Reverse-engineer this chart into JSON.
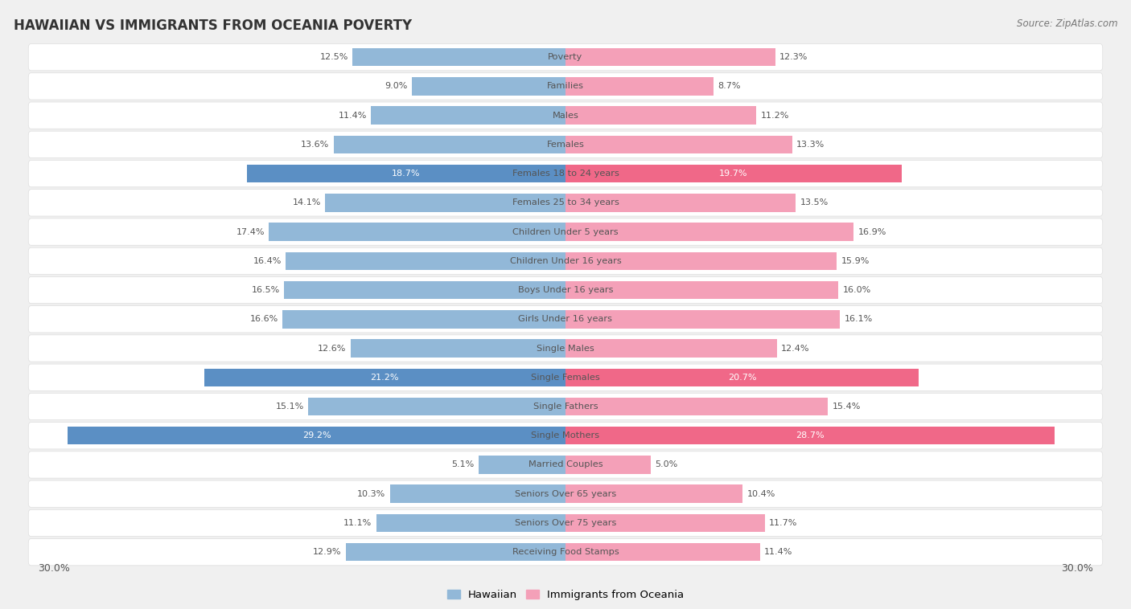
{
  "title": "HAWAIIAN VS IMMIGRANTS FROM OCEANIA POVERTY",
  "source": "Source: ZipAtlas.com",
  "categories": [
    "Poverty",
    "Families",
    "Males",
    "Females",
    "Females 18 to 24 years",
    "Females 25 to 34 years",
    "Children Under 5 years",
    "Children Under 16 years",
    "Boys Under 16 years",
    "Girls Under 16 years",
    "Single Males",
    "Single Females",
    "Single Fathers",
    "Single Mothers",
    "Married Couples",
    "Seniors Over 65 years",
    "Seniors Over 75 years",
    "Receiving Food Stamps"
  ],
  "hawaiian": [
    12.5,
    9.0,
    11.4,
    13.6,
    18.7,
    14.1,
    17.4,
    16.4,
    16.5,
    16.6,
    12.6,
    21.2,
    15.1,
    29.2,
    5.1,
    10.3,
    11.1,
    12.9
  ],
  "oceania": [
    12.3,
    8.7,
    11.2,
    13.3,
    19.7,
    13.5,
    16.9,
    15.9,
    16.0,
    16.1,
    12.4,
    20.7,
    15.4,
    28.7,
    5.0,
    10.4,
    11.7,
    11.4
  ],
  "hawaiian_color": "#92b8d8",
  "oceania_color": "#f4a0b8",
  "highlighted_rows": [
    4,
    11,
    13
  ],
  "highlight_hawaiian_color": "#5b8fc4",
  "highlight_oceania_color": "#f06888",
  "background_color": "#f0f0f0",
  "row_bg_color": "#ffffff",
  "row_border_color": "#dddddd",
  "axis_max": 30.0,
  "legend_hawaiian": "Hawaiian",
  "legend_oceania": "Immigrants from Oceania",
  "value_label_color_normal": "#555555",
  "value_label_color_highlight": "#ffffff",
  "cat_label_color": "#555555"
}
